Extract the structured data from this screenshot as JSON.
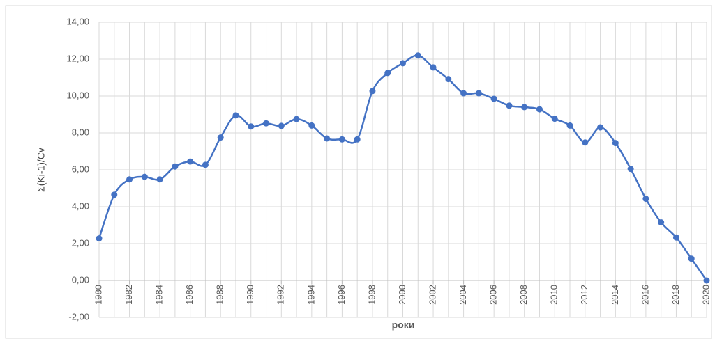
{
  "chart_data": {
    "type": "line",
    "x_label": "роки",
    "y_label": "Σ(Ki-1)/Cv",
    "x": [
      1980,
      1981,
      1982,
      1983,
      1984,
      1985,
      1986,
      1987,
      1988,
      1989,
      1990,
      1991,
      1992,
      1993,
      1994,
      1995,
      1996,
      1997,
      1998,
      1999,
      2000,
      2001,
      2002,
      2003,
      2004,
      2005,
      2006,
      2007,
      2008,
      2009,
      2010,
      2011,
      2012,
      2013,
      2014,
      2015,
      2016,
      2017,
      2018,
      2019,
      2020
    ],
    "series": [
      {
        "color": "#4472c4",
        "values": [
          2.28,
          4.65,
          5.48,
          5.62,
          5.48,
          6.18,
          6.45,
          6.27,
          7.75,
          8.95,
          8.35,
          8.52,
          8.38,
          8.75,
          8.4,
          7.7,
          7.65,
          7.65,
          10.27,
          11.25,
          11.78,
          12.2,
          11.55,
          10.92,
          10.15,
          10.15,
          9.85,
          9.48,
          9.4,
          9.28,
          8.77,
          8.4,
          7.48,
          8.3,
          7.45,
          6.05,
          4.43,
          3.15,
          2.33,
          1.18,
          0
        ]
      }
    ],
    "xlim": [
      1980,
      2020
    ],
    "xticks": [
      1980,
      1982,
      1984,
      1986,
      1988,
      1990,
      1992,
      1994,
      1996,
      1998,
      2000,
      2002,
      2004,
      2006,
      2008,
      2010,
      2012,
      2014,
      2016,
      2018,
      2020
    ],
    "ylim": [
      -2,
      14
    ],
    "yticks": [
      {
        "value": -2,
        "label": "-2,00"
      },
      {
        "value": 0,
        "label": "0,00"
      },
      {
        "value": 2,
        "label": "2,00"
      },
      {
        "value": 4,
        "label": "4,00"
      },
      {
        "value": 6,
        "label": "6,00"
      },
      {
        "value": 8,
        "label": "8,00"
      },
      {
        "value": 10,
        "label": "10,00"
      },
      {
        "value": 12,
        "label": "12,00"
      },
      {
        "value": 14,
        "label": "14,00"
      }
    ],
    "grid": true,
    "smooth": true
  }
}
